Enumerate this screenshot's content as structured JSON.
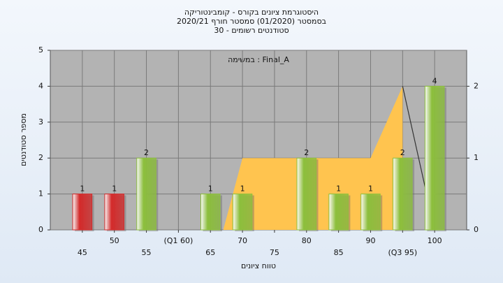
{
  "chart_data": {
    "type": "bar",
    "title": "היסטוגרמת ציונים בקורס - קומבינטוריקה",
    "subtitle": "בסמסטר  (01/2020)  סמסטר חורף 2020/21",
    "subtitle2": "סטודנטים רשומים - 30",
    "annotation": "במשימה : Final_A",
    "y_label": "מספר סטודנטים",
    "x_label": "טווח ציונים",
    "categories": [
      "45",
      "50",
      "55",
      "(Q1 60)",
      "65",
      "70",
      "75",
      "80",
      "85",
      "90",
      "(Q3 95)",
      "100"
    ],
    "values": [
      1,
      1,
      2,
      0,
      1,
      1,
      0,
      2,
      1,
      1,
      2,
      4
    ],
    "colors": [
      "#d42a2a",
      "#d42a2a",
      "#8cbf3c",
      "#8cbf3c",
      "#8cbf3c",
      "#8cbf3c",
      "#8cbf3c",
      "#8cbf3c",
      "#8cbf3c",
      "#8cbf3c",
      "#8cbf3c",
      "#8cbf3c"
    ],
    "xlim": [
      40,
      105
    ],
    "ylim": [
      0,
      5
    ],
    "yticks": [
      0,
      1,
      2,
      3,
      4,
      5
    ],
    "y2lim": [
      0,
      2.5
    ],
    "y2ticks": [
      0,
      1,
      2
    ],
    "area": {
      "x": [
        67,
        70,
        90,
        95,
        95
      ],
      "values": [
        0,
        1,
        1,
        2,
        0
      ],
      "axis": "y2",
      "color": "#ffc44f"
    },
    "line": {
      "x": [
        95,
        98.5
      ],
      "values": [
        2,
        0.6
      ],
      "axis": "y2",
      "color": "#333333"
    },
    "grid": true
  }
}
